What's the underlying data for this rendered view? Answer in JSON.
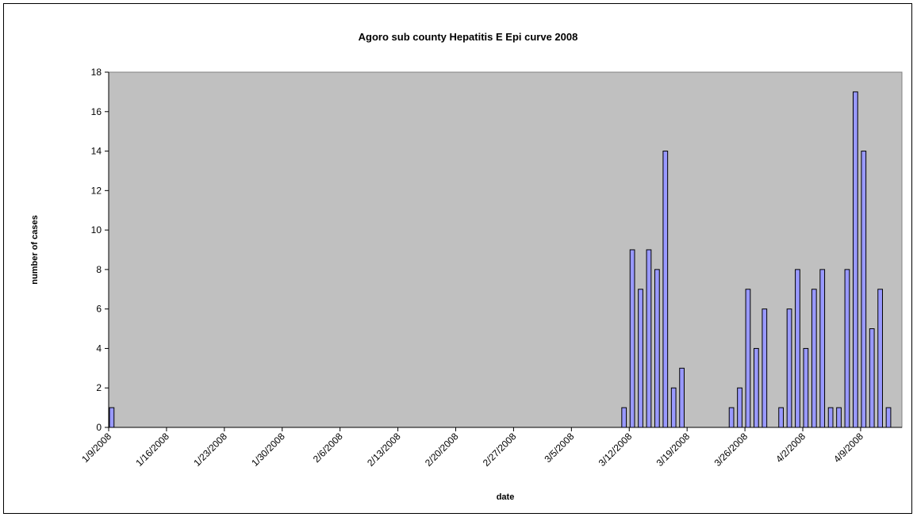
{
  "chart_data": {
    "type": "bar",
    "title": "Agoro sub county Hepatitis E Epi curve 2008",
    "xlabel": "date",
    "ylabel": "number of cases",
    "ylim": [
      0,
      18
    ],
    "yticks": [
      "0",
      "2",
      "4",
      "6",
      "8",
      "10",
      "12",
      "14",
      "16",
      "18"
    ],
    "x_start": "1/9/2008",
    "x_end": "4/14/2008",
    "xticks": [
      "1/9/2008",
      "1/16/2008",
      "1/23/2008",
      "1/30/2008",
      "2/6/2008",
      "2/13/2008",
      "2/20/2008",
      "2/27/2008",
      "3/5/2008",
      "3/12/2008",
      "3/19/2008",
      "3/26/2008",
      "4/2/2008",
      "4/9/2008"
    ],
    "grid": false,
    "legend": "none",
    "colors": {
      "plot_bg": "#c0c0c0",
      "bar_fill": "#9999ff",
      "bar_stroke": "#000000"
    },
    "points": [
      {
        "date": "1/9/2008",
        "value": 1
      },
      {
        "date": "3/11/2008",
        "value": 1
      },
      {
        "date": "3/12/2008",
        "value": 9
      },
      {
        "date": "3/13/2008",
        "value": 7
      },
      {
        "date": "3/14/2008",
        "value": 9
      },
      {
        "date": "3/15/2008",
        "value": 8
      },
      {
        "date": "3/16/2008",
        "value": 14
      },
      {
        "date": "3/17/2008",
        "value": 2
      },
      {
        "date": "3/18/2008",
        "value": 3
      },
      {
        "date": "3/24/2008",
        "value": 1
      },
      {
        "date": "3/25/2008",
        "value": 2
      },
      {
        "date": "3/26/2008",
        "value": 7
      },
      {
        "date": "3/27/2008",
        "value": 4
      },
      {
        "date": "3/28/2008",
        "value": 6
      },
      {
        "date": "3/30/2008",
        "value": 1
      },
      {
        "date": "3/31/2008",
        "value": 6
      },
      {
        "date": "4/1/2008",
        "value": 8
      },
      {
        "date": "4/2/2008",
        "value": 4
      },
      {
        "date": "4/3/2008",
        "value": 7
      },
      {
        "date": "4/4/2008",
        "value": 8
      },
      {
        "date": "4/5/2008",
        "value": 1
      },
      {
        "date": "4/6/2008",
        "value": 1
      },
      {
        "date": "4/7/2008",
        "value": 8
      },
      {
        "date": "4/8/2008",
        "value": 17
      },
      {
        "date": "4/9/2008",
        "value": 14
      },
      {
        "date": "4/10/2008",
        "value": 5
      },
      {
        "date": "4/11/2008",
        "value": 7
      },
      {
        "date": "4/12/2008",
        "value": 1
      }
    ]
  }
}
